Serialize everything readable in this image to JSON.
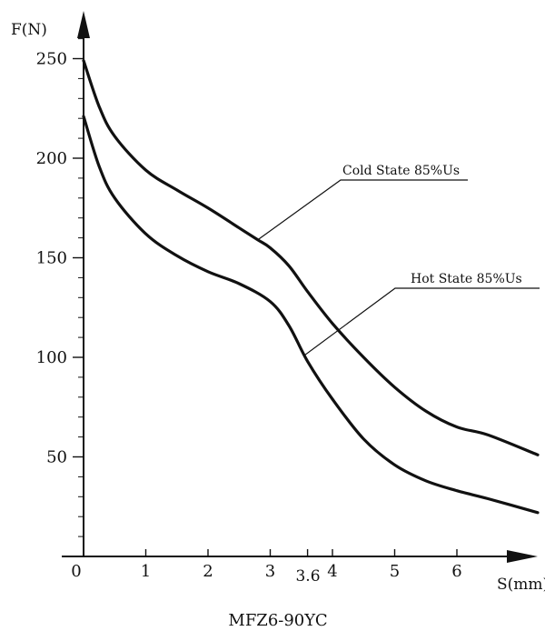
{
  "chart_data": {
    "type": "line",
    "title": "MFZ6-90YC",
    "xlabel": "S(mm)",
    "ylabel": "F(N)",
    "xlim": [
      0,
      7
    ],
    "ylim": [
      0,
      260
    ],
    "x_ticks": [
      0,
      1,
      2,
      3,
      4,
      5,
      6
    ],
    "x_tick_labels": [
      "0",
      "1",
      "2",
      "3",
      "4",
      "5",
      "6"
    ],
    "y_ticks": [
      50,
      100,
      150,
      200,
      250
    ],
    "y_tick_labels": [
      "50",
      "100",
      "150",
      "200",
      "250"
    ],
    "y_minor_step": 10,
    "marker": {
      "x": 3.6,
      "label": "3.6"
    },
    "grid": false,
    "series": [
      {
        "name": "Cold State 85%Us",
        "x": [
          0,
          0.25,
          0.5,
          1.0,
          1.5,
          2.0,
          2.5,
          2.8,
          3.0,
          3.3,
          3.6,
          4.0,
          4.5,
          5.0,
          5.5,
          6.0,
          6.5,
          7.3
        ],
        "y": [
          249,
          226,
          211,
          194,
          184,
          175,
          165,
          159,
          155,
          146,
          133,
          117,
          100,
          85,
          73,
          65,
          61,
          51
        ]
      },
      {
        "name": "Hot State 85%Us",
        "x": [
          0,
          0.25,
          0.5,
          1.0,
          1.5,
          2.0,
          2.5,
          3.0,
          3.3,
          3.6,
          4.0,
          4.5,
          5.0,
          5.5,
          6.0,
          6.5,
          7.3
        ],
        "y": [
          221,
          196,
          180,
          162,
          151,
          143,
          137,
          128,
          116,
          98,
          79,
          59,
          46,
          38,
          33,
          29,
          22
        ]
      }
    ],
    "annotations": [
      {
        "text": "Cold State 85%Us",
        "series": 0,
        "at_x": 2.8
      },
      {
        "text": "Hot State 85%Us",
        "series": 1,
        "at_x": 3.55
      }
    ]
  }
}
